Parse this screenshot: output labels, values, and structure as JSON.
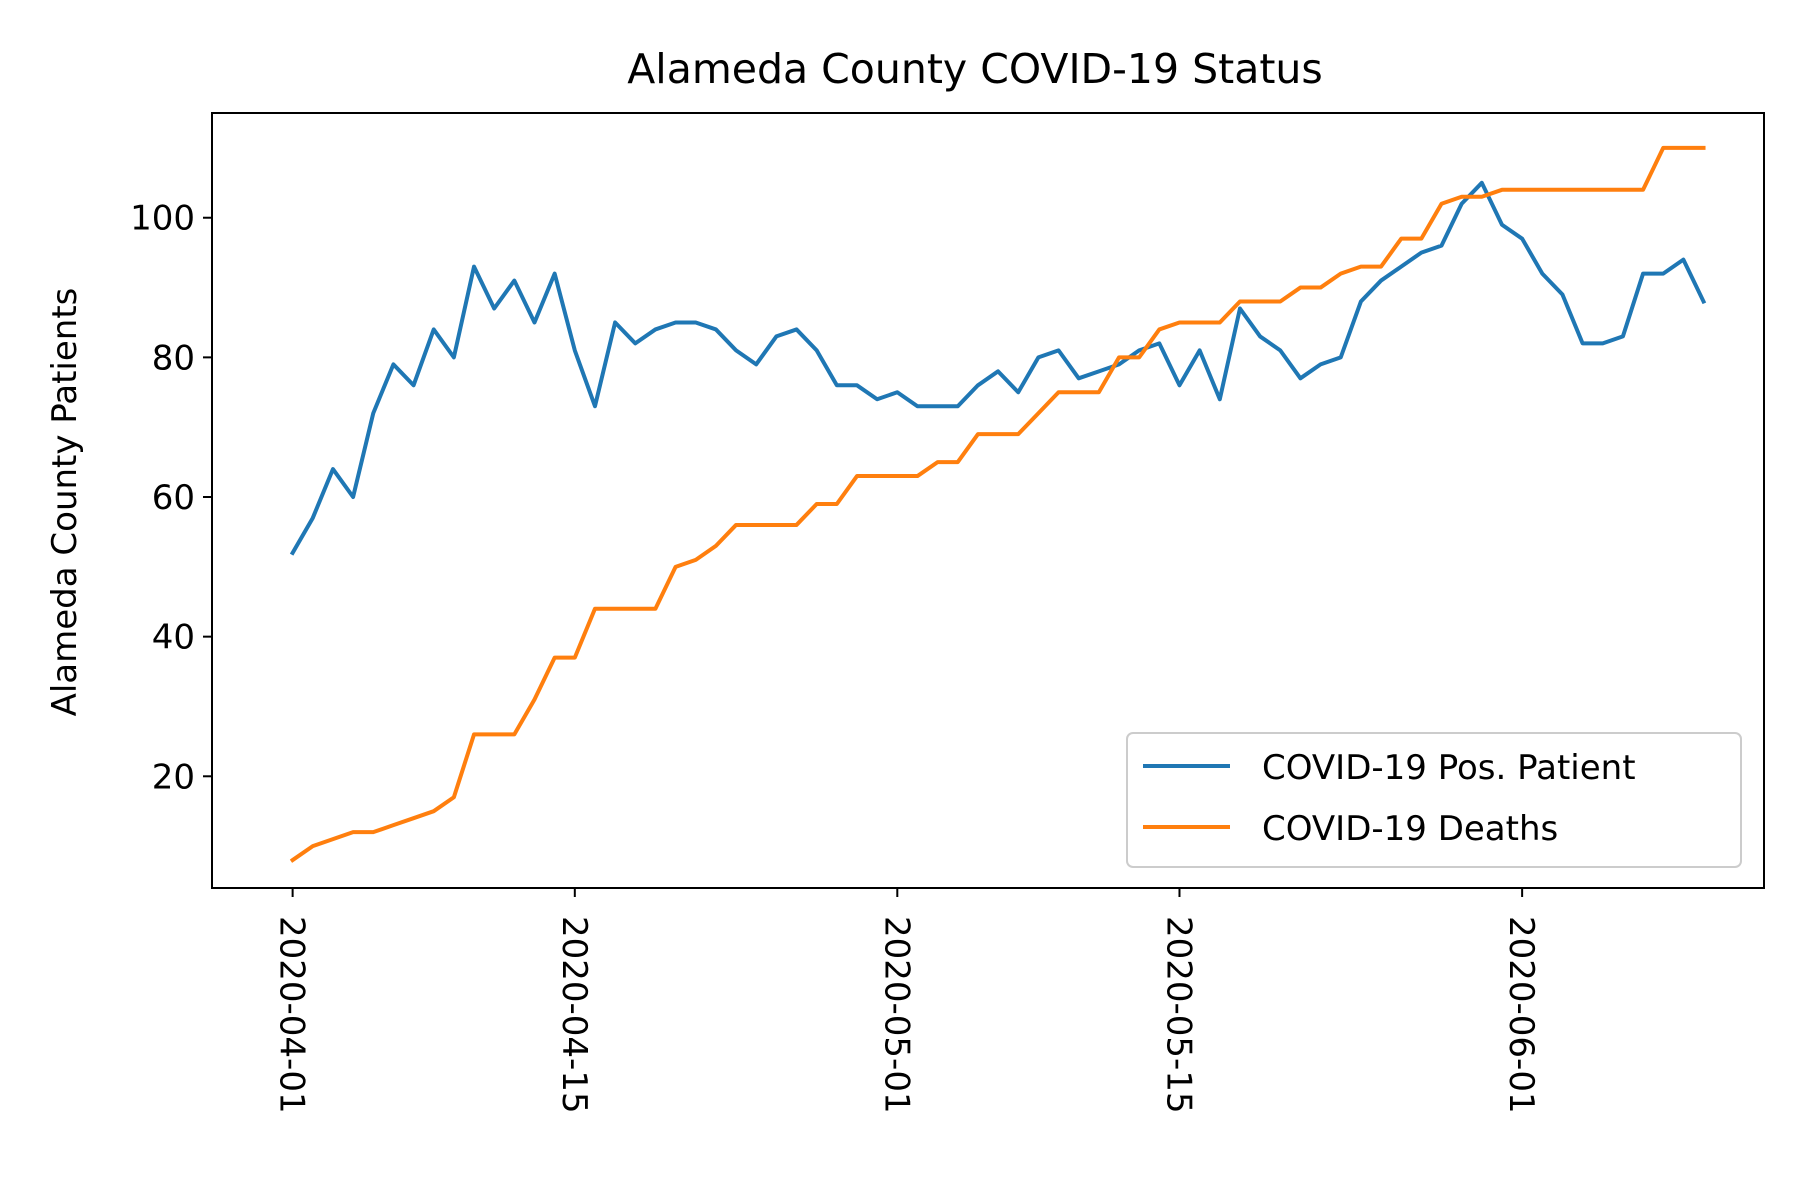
{
  "chart_data": {
    "type": "line",
    "title": "Alameda County COVID-19 Status",
    "xlabel": "",
    "ylabel": "Alameda County Patients",
    "x_start": "2020-04-01",
    "x_end": "2020-06-10",
    "xlim": [
      "2020-03-28",
      "2020-06-13"
    ],
    "ylim": [
      4,
      115
    ],
    "x_ticks": [
      "2020-04-01",
      "2020-04-15",
      "2020-05-01",
      "2020-05-15",
      "2020-06-01"
    ],
    "y_ticks": [
      20,
      40,
      60,
      80,
      100
    ],
    "grid": false,
    "legend_position": "lower right",
    "series": [
      {
        "name": "COVID-19 Pos. Patient",
        "color": "#1f77b4",
        "values": [
          52,
          57,
          64,
          60,
          72,
          79,
          76,
          84,
          80,
          93,
          87,
          91,
          85,
          92,
          81,
          73,
          85,
          82,
          84,
          85,
          85,
          84,
          81,
          79,
          83,
          84,
          81,
          76,
          76,
          74,
          75,
          73,
          73,
          73,
          76,
          78,
          75,
          80,
          81,
          77,
          78,
          79,
          81,
          82,
          76,
          81,
          74,
          87,
          83,
          81,
          77,
          79,
          80,
          88,
          91,
          93,
          95,
          96,
          102,
          105,
          99,
          97,
          92,
          89,
          82,
          82,
          83,
          92,
          92,
          94,
          88
        ]
      },
      {
        "name": "COVID-19 Deaths",
        "color": "#ff7f0e",
        "values": [
          8,
          10,
          11,
          12,
          12,
          13,
          14,
          15,
          17,
          26,
          26,
          26,
          31,
          37,
          37,
          44,
          44,
          44,
          44,
          50,
          51,
          53,
          56,
          56,
          56,
          56,
          59,
          59,
          63,
          63,
          63,
          63,
          65,
          65,
          69,
          69,
          69,
          72,
          75,
          75,
          75,
          80,
          80,
          84,
          85,
          85,
          85,
          88,
          88,
          88,
          90,
          90,
          92,
          93,
          93,
          97,
          97,
          102,
          103,
          103,
          104,
          104,
          104,
          104,
          104,
          104,
          104,
          104,
          110,
          110,
          110
        ]
      }
    ]
  }
}
